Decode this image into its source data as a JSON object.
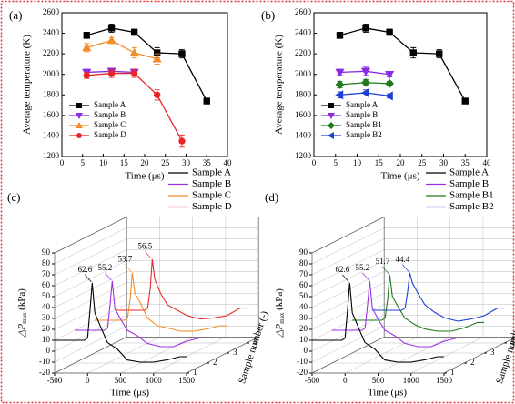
{
  "chart_data": [
    {
      "type": "line",
      "panel": "(a)",
      "xlabel": "Time (μs)",
      "ylabel": "Average temperature (K)",
      "xlim": [
        0,
        40
      ],
      "xticks": [
        0,
        5,
        10,
        15,
        20,
        25,
        30,
        35,
        40
      ],
      "ylim": [
        1200,
        2600
      ],
      "yticks": [
        1200,
        1400,
        1600,
        1800,
        2000,
        2200,
        2400,
        2600
      ],
      "legend": "lower-left",
      "series": [
        {
          "name": "Sample A",
          "color": "#000000",
          "marker": "square",
          "x": [
            6,
            12,
            17.5,
            23,
            29,
            35
          ],
          "values": [
            2380,
            2450,
            2410,
            2210,
            2200,
            1740
          ],
          "errors": [
            30,
            40,
            30,
            50,
            40,
            25
          ]
        },
        {
          "name": "Sample B",
          "color": "#8a2be2",
          "marker": "triangle-down",
          "x": [
            6,
            12,
            17.5
          ],
          "values": [
            2020,
            2030,
            2020
          ],
          "errors": [
            30,
            30,
            30
          ]
        },
        {
          "name": "Sample C",
          "color": "#f28c28",
          "marker": "triangle-up",
          "x": [
            6,
            12,
            17.5,
            23
          ],
          "values": [
            2260,
            2330,
            2210,
            2150
          ],
          "errors": [
            40,
            30,
            50,
            50
          ]
        },
        {
          "name": "Sample D",
          "color": "#e8262a",
          "marker": "circle",
          "x": [
            6,
            12,
            17.5,
            23,
            29
          ],
          "values": [
            1990,
            2010,
            2010,
            1800,
            1350
          ],
          "errors": [
            30,
            40,
            40,
            50,
            60
          ]
        }
      ]
    },
    {
      "type": "line",
      "panel": "(b)",
      "xlabel": "Time (μs)",
      "ylabel": "Average temperature (K)",
      "xlim": [
        0,
        40
      ],
      "xticks": [
        0,
        5,
        10,
        15,
        20,
        25,
        30,
        35,
        40
      ],
      "ylim": [
        1200,
        2600
      ],
      "yticks": [
        1200,
        1400,
        1600,
        1800,
        2000,
        2200,
        2400,
        2600
      ],
      "legend": "lower-left",
      "series": [
        {
          "name": "Sample A",
          "color": "#000000",
          "marker": "square",
          "x": [
            6,
            12,
            17.5,
            23,
            29,
            35
          ],
          "values": [
            2380,
            2450,
            2410,
            2210,
            2200,
            1740
          ],
          "errors": [
            30,
            40,
            30,
            50,
            40,
            25
          ]
        },
        {
          "name": "Sample B",
          "color": "#8a2be2",
          "marker": "triangle-down",
          "x": [
            6,
            12,
            17.5
          ],
          "values": [
            2020,
            2030,
            2000
          ],
          "errors": [
            30,
            40,
            25
          ]
        },
        {
          "name": "Sample B1",
          "color": "#1e7b1e",
          "marker": "diamond",
          "x": [
            6,
            12,
            17.5
          ],
          "values": [
            1900,
            1920,
            1910
          ],
          "errors": [
            30,
            30,
            20
          ]
        },
        {
          "name": "Sample B2",
          "color": "#1f3fd6",
          "marker": "triangle-left",
          "x": [
            6,
            12,
            17.5
          ],
          "values": [
            1800,
            1820,
            1790
          ],
          "errors": [
            30,
            30,
            20
          ]
        }
      ]
    },
    {
      "type": "waterfall3d",
      "panel": "(c)",
      "xlabel": "Time (μs)",
      "ylabel": "△P",
      "ylabel_sub": "max",
      "ylabel_unit": " (kPa)",
      "zlabel": "Sample number (-)",
      "xlim": [
        -500,
        1500
      ],
      "xticks": [
        -500,
        0,
        500,
        1000,
        1500
      ],
      "ylim": [
        -20,
        90
      ],
      "yticks": [
        -20,
        -10,
        0,
        10,
        20,
        30,
        40,
        50,
        60,
        70,
        80,
        90
      ],
      "zticks": [
        1,
        2,
        3,
        4
      ],
      "legend": "upper-right",
      "series": [
        {
          "name": "Sample A",
          "color": "#000000",
          "depth": 1,
          "peak": 62.6,
          "x": [
            -500,
            -50,
            0,
            40,
            70,
            110,
            200,
            300,
            450,
            600,
            800,
            1000,
            1200,
            1400,
            1500
          ],
          "values": [
            10,
            10,
            12,
            40,
            62.6,
            35,
            22,
            8,
            2,
            -8,
            -10,
            -10,
            -8,
            -5,
            -5
          ]
        },
        {
          "name": "Sample B",
          "color": "#9b30e6",
          "depth": 2,
          "peak": 55.2,
          "x": [
            -500,
            -50,
            0,
            40,
            70,
            110,
            200,
            300,
            450,
            600,
            800,
            1000,
            1200,
            1400,
            1500
          ],
          "values": [
            10,
            10,
            12,
            35,
            55.2,
            30,
            20,
            10,
            5,
            -2,
            -5,
            -5,
            0,
            3,
            3
          ]
        },
        {
          "name": "Sample C",
          "color": "#f28c28",
          "depth": 3,
          "peak": 53.7,
          "x": [
            -500,
            -50,
            0,
            40,
            70,
            110,
            200,
            300,
            450,
            600,
            800,
            1000,
            1200,
            1400,
            1500
          ],
          "values": [
            10,
            10,
            12,
            30,
            53.7,
            35,
            25,
            12,
            5,
            3,
            0,
            0,
            2,
            5,
            5
          ]
        },
        {
          "name": "Sample D",
          "color": "#e8262a",
          "depth": 4,
          "peak": 56.5,
          "x": [
            -500,
            -50,
            0,
            40,
            70,
            110,
            200,
            300,
            450,
            600,
            800,
            1000,
            1200,
            1400,
            1500
          ],
          "values": [
            10,
            10,
            12,
            30,
            56.5,
            38,
            25,
            15,
            10,
            5,
            2,
            3,
            5,
            12,
            12
          ]
        }
      ]
    },
    {
      "type": "waterfall3d",
      "panel": "(d)",
      "xlabel": "Time (μs)",
      "ylabel": "△P",
      "ylabel_sub": "max",
      "ylabel_unit": " (kPa)",
      "zlabel": "Sample number (-)",
      "xlim": [
        -500,
        1500
      ],
      "xticks": [
        -500,
        0,
        500,
        1000,
        1500
      ],
      "ylim": [
        -20,
        90
      ],
      "yticks": [
        -20,
        -10,
        0,
        10,
        20,
        30,
        40,
        50,
        60,
        70,
        80,
        90
      ],
      "zticks": [
        1,
        2,
        3,
        4
      ],
      "legend": "upper-right",
      "series": [
        {
          "name": "Sample A",
          "color": "#000000",
          "depth": 1,
          "peak": 62.6,
          "x": [
            -500,
            -50,
            0,
            40,
            70,
            110,
            200,
            300,
            450,
            600,
            800,
            1000,
            1200,
            1400,
            1500
          ],
          "values": [
            10,
            10,
            12,
            40,
            62.6,
            35,
            22,
            8,
            2,
            -8,
            -10,
            -10,
            -8,
            -5,
            -5
          ]
        },
        {
          "name": "Sample B",
          "color": "#9b30e6",
          "depth": 2,
          "peak": 55.2,
          "x": [
            -500,
            -50,
            0,
            40,
            70,
            110,
            200,
            300,
            450,
            600,
            800,
            1000,
            1200,
            1400,
            1500
          ],
          "values": [
            10,
            10,
            12,
            35,
            55.2,
            30,
            20,
            10,
            5,
            -2,
            -5,
            -5,
            0,
            3,
            3
          ]
        },
        {
          "name": "Sample B1",
          "color": "#1e7b1e",
          "depth": 3,
          "peak": 51.7,
          "x": [
            -500,
            -50,
            0,
            40,
            70,
            110,
            200,
            300,
            450,
            600,
            800,
            1000,
            1200,
            1400,
            1500
          ],
          "values": [
            10,
            10,
            12,
            30,
            51.7,
            32,
            22,
            12,
            6,
            2,
            0,
            0,
            3,
            8,
            8
          ]
        },
        {
          "name": "Sample B2",
          "color": "#1f3fd6",
          "depth": 4,
          "peak": 44.4,
          "x": [
            -500,
            -50,
            0,
            40,
            70,
            110,
            200,
            300,
            450,
            600,
            800,
            1000,
            1200,
            1400,
            1500
          ],
          "values": [
            10,
            10,
            12,
            28,
            44.4,
            35,
            25,
            15,
            8,
            3,
            0,
            2,
            5,
            12,
            12
          ]
        }
      ]
    }
  ]
}
